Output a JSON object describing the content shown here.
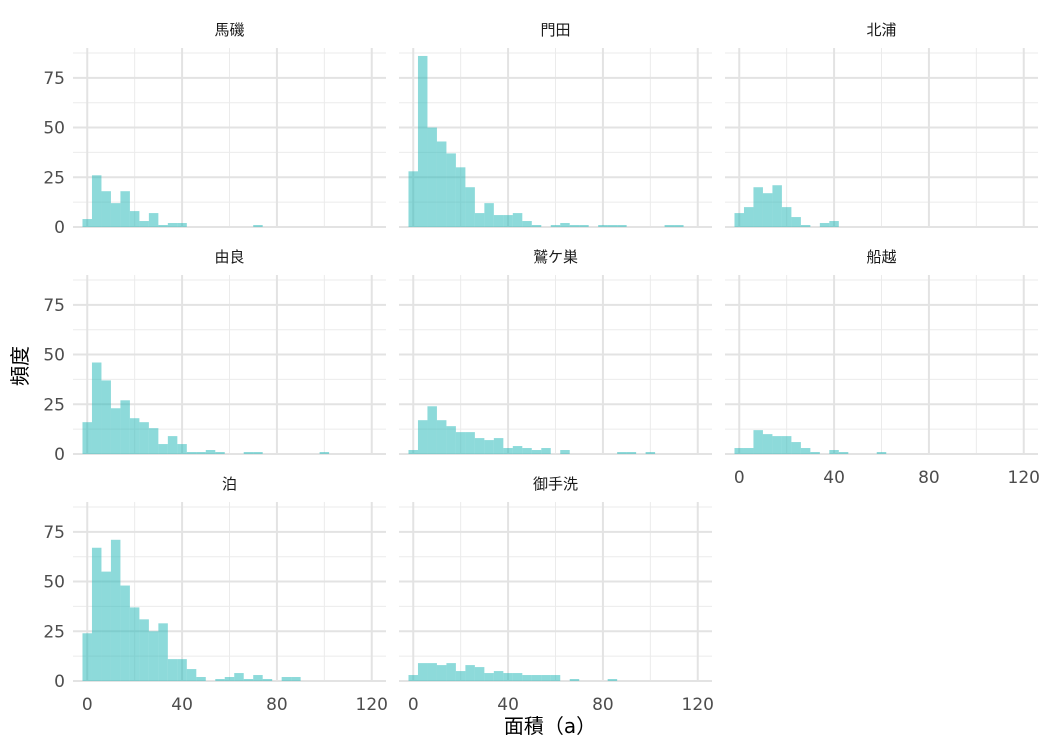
{
  "chart_data": {
    "type": "histogram-facets",
    "xlabel": "面積（a）",
    "ylabel": "頻度",
    "xlim": [
      -6,
      126
    ],
    "ylim": [
      0,
      90
    ],
    "xticks": [
      0,
      40,
      80,
      120
    ],
    "yticks": [
      0,
      25,
      50,
      75
    ],
    "bin_width": 4,
    "bin_start": -2,
    "bar_color": "#2fbcbc",
    "facets": [
      {
        "name": "馬磯",
        "counts": [
          4,
          26,
          18,
          12,
          18,
          8,
          3,
          7,
          1,
          2,
          2,
          0,
          0,
          0,
          0,
          0,
          0,
          0,
          1
        ]
      },
      {
        "name": "門田",
        "counts": [
          28,
          86,
          50,
          43,
          37,
          30,
          20,
          7,
          12,
          6,
          6,
          7,
          3,
          1,
          0,
          1,
          2,
          1,
          1,
          0,
          1,
          1,
          1,
          0,
          0,
          0,
          0,
          1,
          1,
          0,
          0,
          0
        ]
      },
      {
        "name": "北浦",
        "counts": [
          7,
          10,
          20,
          17,
          21,
          10,
          5,
          1,
          0,
          2,
          3
        ]
      },
      {
        "name": "由良",
        "counts": [
          16,
          46,
          37,
          23,
          27,
          18,
          16,
          13,
          5,
          9,
          5,
          1,
          1,
          2,
          1,
          0,
          0,
          1,
          1,
          0,
          0,
          0,
          0,
          0,
          0,
          1
        ]
      },
      {
        "name": "鷲ケ巣",
        "counts": [
          2,
          17,
          24,
          17,
          14,
          11,
          11,
          8,
          7,
          8,
          3,
          4,
          3,
          2,
          3,
          0,
          2,
          0,
          0,
          0,
          0,
          0,
          1,
          1,
          0,
          1
        ]
      },
      {
        "name": "船越",
        "counts": [
          3,
          3,
          12,
          10,
          9,
          9,
          6,
          3,
          1,
          0,
          2,
          1,
          0,
          0,
          0,
          1
        ]
      },
      {
        "name": "泊",
        "counts": [
          24,
          67,
          55,
          71,
          48,
          37,
          31,
          25,
          29,
          11,
          11,
          6,
          2,
          0,
          1,
          2,
          4,
          1,
          3,
          1,
          0,
          2,
          2
        ]
      },
      {
        "name": "御手洗",
        "counts": [
          3,
          9,
          9,
          8,
          9,
          5,
          8,
          7,
          4,
          5,
          4,
          4,
          3,
          3,
          3,
          3,
          0,
          1,
          0,
          0,
          0,
          1
        ]
      }
    ]
  }
}
